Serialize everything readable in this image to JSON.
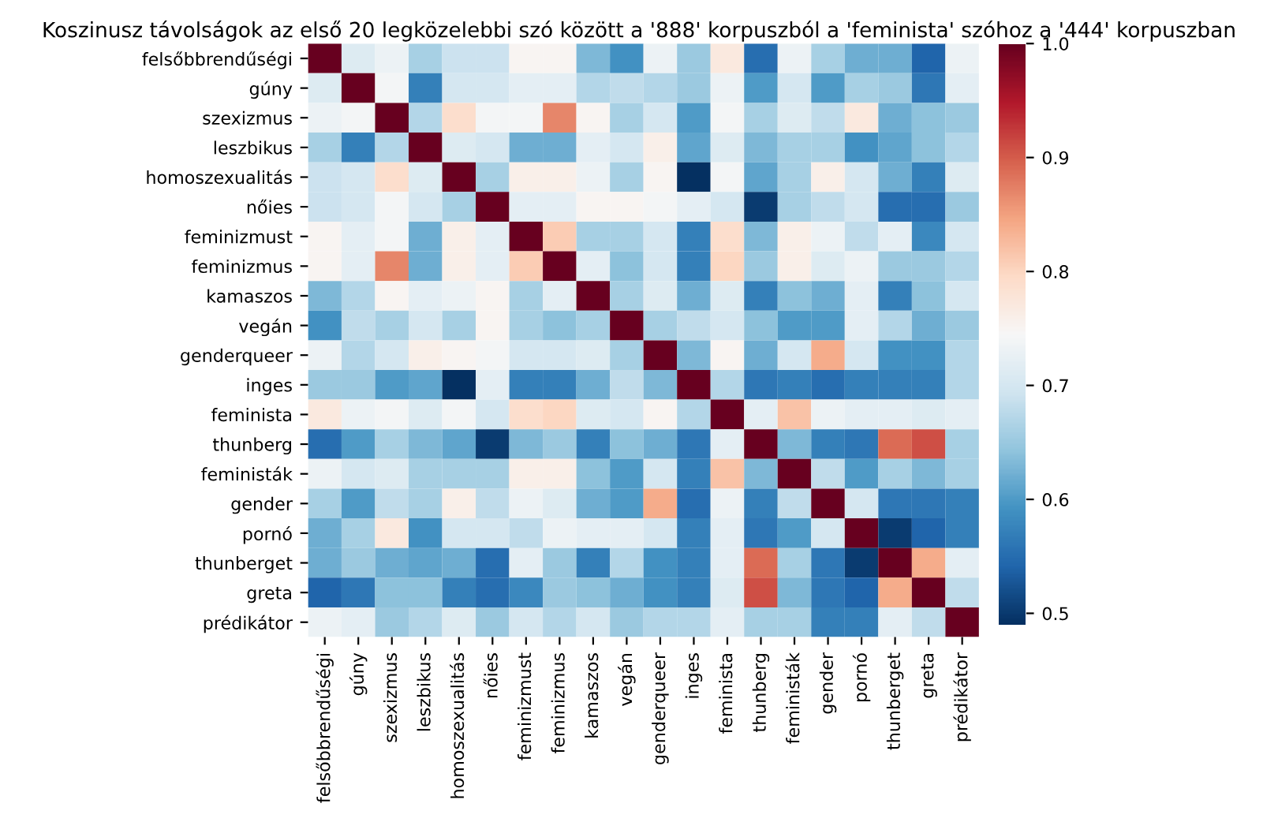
{
  "chart_data": {
    "type": "heatmap",
    "title": "Koszinusz távolságok az első 20 legközelebbi szó között a '888' korpuszból a 'feminista' szóhoz a '444' korpuszban",
    "categories": [
      "felsőbbrendűségi",
      "gúny",
      "szexizmus",
      "leszbikus",
      "homoszexualitás",
      "nőies",
      "feminizmust",
      "feminizmus",
      "kamaszos",
      "vegán",
      "genderqueer",
      "inges",
      "feminista",
      "thunberg",
      "feministák",
      "gender",
      "pornó",
      "thunberget",
      "greta",
      "prédikátor"
    ],
    "y_categories": [
      "felsőbbrendűségi",
      "gúny",
      "szexizmus",
      "leszbikus",
      "homoszexualitás",
      "nőies",
      "feminizmust",
      "feminizmus",
      "kamaszos",
      "vegán",
      "genderqueer",
      "inges",
      "feminista",
      "thunberg",
      "feministák",
      "gender",
      "pornó",
      "thunberget",
      "greta",
      "prédikátor"
    ],
    "cells": [
      [
        1,
        0.71,
        0.73,
        0.66,
        0.69,
        0.69,
        0.75,
        0.75,
        0.63,
        0.59,
        0.73,
        0.65,
        0.77,
        0.55,
        0.73,
        0.66,
        0.62,
        0.62,
        0.54,
        0.73
      ],
      [
        0.71,
        1,
        0.74,
        0.57,
        0.7,
        0.7,
        0.72,
        0.72,
        0.67,
        0.68,
        0.67,
        0.65,
        0.73,
        0.6,
        0.7,
        0.6,
        0.66,
        0.65,
        0.56,
        0.72
      ],
      [
        0.73,
        0.74,
        1,
        0.67,
        0.79,
        0.74,
        0.74,
        0.87,
        0.75,
        0.66,
        0.7,
        0.6,
        0.74,
        0.66,
        0.71,
        0.68,
        0.77,
        0.62,
        0.64,
        0.65
      ],
      [
        0.66,
        0.57,
        0.67,
        1,
        0.71,
        0.7,
        0.62,
        0.62,
        0.72,
        0.7,
        0.76,
        0.61,
        0.71,
        0.63,
        0.66,
        0.66,
        0.59,
        0.61,
        0.64,
        0.67
      ],
      [
        0.69,
        0.7,
        0.79,
        0.71,
        1,
        0.66,
        0.76,
        0.76,
        0.73,
        0.66,
        0.75,
        0.49,
        0.74,
        0.61,
        0.66,
        0.76,
        0.7,
        0.62,
        0.57,
        0.71
      ],
      [
        0.69,
        0.7,
        0.74,
        0.7,
        0.66,
        1,
        0.72,
        0.72,
        0.75,
        0.75,
        0.74,
        0.72,
        0.7,
        0.5,
        0.66,
        0.68,
        0.7,
        0.55,
        0.55,
        0.65
      ],
      [
        0.75,
        0.72,
        0.74,
        0.62,
        0.76,
        0.72,
        1,
        0.81,
        0.66,
        0.66,
        0.7,
        0.57,
        0.79,
        0.63,
        0.76,
        0.73,
        0.68,
        0.72,
        0.58,
        0.7
      ],
      [
        0.75,
        0.72,
        0.87,
        0.62,
        0.76,
        0.72,
        0.81,
        1,
        0.72,
        0.64,
        0.7,
        0.57,
        0.8,
        0.65,
        0.76,
        0.71,
        0.73,
        0.65,
        0.65,
        0.67
      ],
      [
        0.63,
        0.67,
        0.75,
        0.72,
        0.73,
        0.75,
        0.66,
        0.72,
        1,
        0.66,
        0.71,
        0.62,
        0.71,
        0.57,
        0.64,
        0.62,
        0.72,
        0.57,
        0.64,
        0.7
      ],
      [
        0.59,
        0.68,
        0.66,
        0.7,
        0.66,
        0.75,
        0.66,
        0.64,
        0.66,
        1,
        0.66,
        0.68,
        0.7,
        0.64,
        0.6,
        0.6,
        0.72,
        0.67,
        0.62,
        0.65
      ],
      [
        0.73,
        0.67,
        0.7,
        0.76,
        0.75,
        0.74,
        0.7,
        0.7,
        0.71,
        0.66,
        1,
        0.63,
        0.75,
        0.62,
        0.7,
        0.84,
        0.7,
        0.59,
        0.59,
        0.67
      ],
      [
        0.65,
        0.65,
        0.6,
        0.61,
        0.49,
        0.72,
        0.57,
        0.57,
        0.62,
        0.68,
        0.63,
        1,
        0.67,
        0.56,
        0.57,
        0.55,
        0.57,
        0.57,
        0.57,
        0.67
      ],
      [
        0.77,
        0.73,
        0.74,
        0.71,
        0.74,
        0.7,
        0.79,
        0.8,
        0.71,
        0.7,
        0.75,
        0.67,
        1,
        0.72,
        0.82,
        0.73,
        0.72,
        0.72,
        0.71,
        0.72
      ],
      [
        0.55,
        0.6,
        0.66,
        0.63,
        0.61,
        0.5,
        0.63,
        0.65,
        0.57,
        0.64,
        0.62,
        0.56,
        0.72,
        1,
        0.63,
        0.57,
        0.56,
        0.89,
        0.91,
        0.66
      ],
      [
        0.73,
        0.7,
        0.71,
        0.66,
        0.66,
        0.66,
        0.76,
        0.76,
        0.64,
        0.6,
        0.7,
        0.57,
        0.82,
        0.63,
        1,
        0.68,
        0.6,
        0.66,
        0.63,
        0.66
      ],
      [
        0.66,
        0.6,
        0.68,
        0.66,
        0.76,
        0.68,
        0.73,
        0.71,
        0.62,
        0.6,
        0.84,
        0.55,
        0.73,
        0.57,
        0.68,
        1,
        0.7,
        0.56,
        0.56,
        0.57
      ],
      [
        0.62,
        0.66,
        0.77,
        0.59,
        0.7,
        0.7,
        0.68,
        0.73,
        0.72,
        0.72,
        0.7,
        0.57,
        0.72,
        0.56,
        0.6,
        0.7,
        1,
        0.5,
        0.54,
        0.57
      ],
      [
        0.62,
        0.65,
        0.62,
        0.61,
        0.62,
        0.55,
        0.72,
        0.65,
        0.57,
        0.67,
        0.59,
        0.57,
        0.72,
        0.89,
        0.66,
        0.56,
        0.5,
        1,
        0.84,
        0.72
      ],
      [
        0.54,
        0.56,
        0.64,
        0.64,
        0.57,
        0.55,
        0.58,
        0.65,
        0.64,
        0.62,
        0.59,
        0.57,
        0.71,
        0.91,
        0.63,
        0.56,
        0.54,
        0.84,
        1,
        0.68
      ],
      [
        0.73,
        0.72,
        0.65,
        0.67,
        0.71,
        0.65,
        0.7,
        0.67,
        0.7,
        0.65,
        0.67,
        0.67,
        0.72,
        0.66,
        0.66,
        0.57,
        0.57,
        0.72,
        0.68,
        1
      ]
    ],
    "clim": [
      0.49,
      1.0
    ],
    "cticks": [
      {
        "value": 0.5,
        "label": "0.5"
      },
      {
        "value": 0.6,
        "label": "0.6"
      },
      {
        "value": 0.7,
        "label": "0.7"
      },
      {
        "value": 0.8,
        "label": "0.8"
      },
      {
        "value": 0.9,
        "label": "0.9"
      },
      {
        "value": 1.0,
        "label": "1.0"
      }
    ]
  }
}
